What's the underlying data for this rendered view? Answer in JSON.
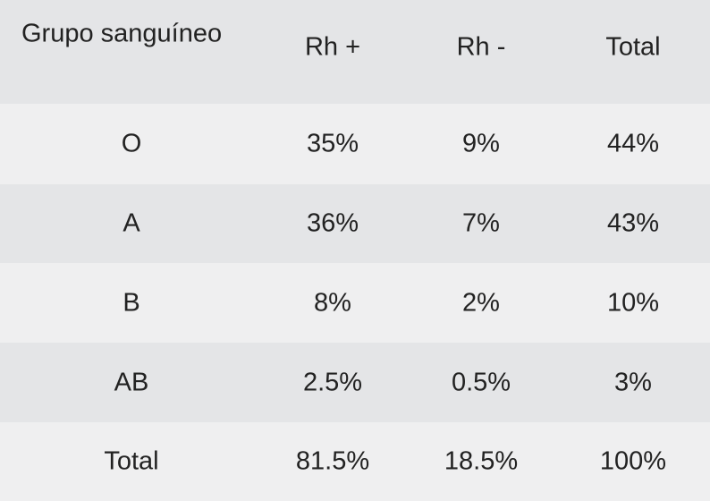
{
  "table": {
    "header": [
      "Grupo sanguíneo",
      "Rh +",
      "Rh -",
      "Total"
    ],
    "rows": [
      [
        "O",
        "35%",
        "9%",
        "44%"
      ],
      [
        "A",
        "36%",
        "7%",
        "43%"
      ],
      [
        "B",
        "8%",
        "2%",
        "10%"
      ],
      [
        "AB",
        "2.5%",
        "0.5%",
        "3%"
      ],
      [
        "Total",
        "81.5%",
        "18.5%",
        "100%"
      ]
    ]
  }
}
